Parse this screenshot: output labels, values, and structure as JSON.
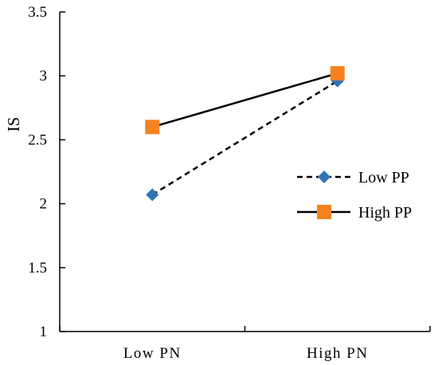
{
  "chart_data": {
    "type": "line",
    "title": "",
    "xlabel": "",
    "ylabel": "IS",
    "categories": [
      "Low PN",
      "High PN"
    ],
    "ylim": [
      1,
      3.5
    ],
    "yticks": [
      "1",
      "1.5",
      "2",
      "2.5",
      "3",
      "3.5"
    ],
    "ytick_values": [
      1,
      1.5,
      2,
      2.5,
      3,
      3.5
    ],
    "grid": false,
    "legend_position": "right",
    "series": [
      {
        "name": "Low PP",
        "values": [
          2.07,
          2.96
        ],
        "color": "#2E75B6",
        "marker": "diamond",
        "line_style": "dashed"
      },
      {
        "name": "High PP",
        "values": [
          2.6,
          3.02
        ],
        "color": "#F58220",
        "marker": "square",
        "line_style": "solid"
      }
    ]
  }
}
